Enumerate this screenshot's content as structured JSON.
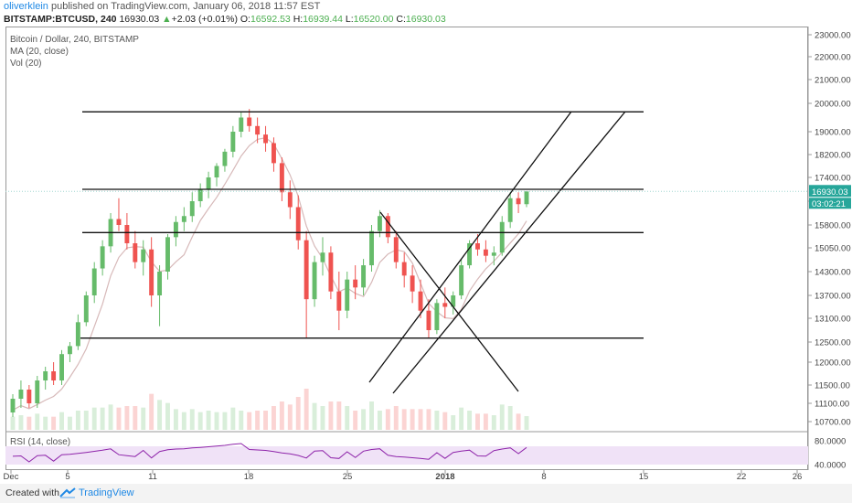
{
  "header": {
    "author": "oliverklein",
    "published_text": "published on TradingView.com, January 06, 2018 11:57 EST",
    "symbol": "BITSTAMP:BTCUSD",
    "interval": "240",
    "price": "16930.03",
    "change": "+2.03 (+0.01%)",
    "o_label": "O:",
    "o_value": "16592.53",
    "h_label": "H:",
    "h_value": "16939.44",
    "l_label": "L:",
    "l_value": "16520.00",
    "c_label": "C:",
    "c_value": "16930.03"
  },
  "legend": {
    "title": "Bitcoin / Dollar, 240, BITSTAMP",
    "ma": "MA (20, close)",
    "vol": "Vol (20)",
    "rsi": "RSI (14, close)"
  },
  "footer": {
    "created_with": "Created with",
    "brand": "TradingView"
  },
  "colors": {
    "up": "#66bb6a",
    "down": "#ef5350",
    "ma": "#d7b9b9",
    "rsi_line": "#8e24aa",
    "rsi_band": "#f0e2f7",
    "price_label": "#26a69a",
    "accent": "#1e88e5"
  },
  "chart_data": {
    "type": "candlestick",
    "title": "Bitcoin / Dollar, 240, BITSTAMP",
    "current_price_label": "16930.03",
    "countdown_label": "03:02:21",
    "y_ticks": [
      "23000.00",
      "22000.00",
      "21000.00",
      "20000.00",
      "19000.00",
      "18200.00",
      "17400.00",
      "16600.00",
      "15800.00",
      "15050.00",
      "14300.00",
      "13700.00",
      "13100.00",
      "12500.00",
      "12000.00",
      "11500.00",
      "11100.00",
      "10700.00"
    ],
    "rsi_ticks": [
      "80.0000",
      "40.0000"
    ],
    "x_ticks": [
      "Dec",
      "5",
      "11",
      "18",
      "25",
      "2018",
      "8",
      "15",
      "22",
      "26"
    ],
    "x_ticks_bold": [
      "2018"
    ],
    "ylim_approx": [
      10400,
      23400
    ],
    "ma_label": "MA (20, close)",
    "rsi_label": "RSI (14, close)",
    "horizontal_lines": [
      19700,
      17000,
      15550,
      12600
    ],
    "trend_lines": [
      {
        "from": [
          "Dec 29",
          11500
        ],
        "to": [
          "Jan 9",
          19700
        ]
      },
      {
        "from": [
          "Dec 30",
          11300
        ],
        "to": [
          "Jan 12",
          19700
        ]
      },
      {
        "from": [
          "Dec 27",
          16250
        ],
        "to": [
          "Jan 6",
          11400
        ]
      }
    ],
    "candles_approx": [
      [
        10900,
        11300,
        10800,
        11200
      ],
      [
        11200,
        11600,
        11000,
        11400
      ],
      [
        11400,
        11500,
        11000,
        11100
      ],
      [
        11100,
        11700,
        11000,
        11600
      ],
      [
        11600,
        11900,
        11400,
        11800
      ],
      [
        11800,
        12000,
        11500,
        11600
      ],
      [
        11600,
        12300,
        11500,
        12200
      ],
      [
        12200,
        12500,
        12000,
        12400
      ],
      [
        12400,
        13200,
        12300,
        13000
      ],
      [
        13000,
        13800,
        12900,
        13700
      ],
      [
        13700,
        14600,
        13500,
        14400
      ],
      [
        14400,
        15300,
        14200,
        15100
      ],
      [
        15100,
        16200,
        14900,
        16000
      ],
      [
        16000,
        16700,
        15600,
        15800
      ],
      [
        15800,
        16200,
        15000,
        15200
      ],
      [
        15200,
        15600,
        14400,
        14600
      ],
      [
        14600,
        15300,
        14200,
        15000
      ],
      [
        15000,
        15400,
        13400,
        13700
      ],
      [
        13700,
        14500,
        12900,
        14300
      ],
      [
        14300,
        15500,
        14100,
        15400
      ],
      [
        15400,
        16100,
        15100,
        15900
      ],
      [
        15900,
        16400,
        15600,
        16100
      ],
      [
        16100,
        16900,
        15900,
        16600
      ],
      [
        16600,
        17200,
        16400,
        17000
      ],
      [
        17000,
        17600,
        16700,
        17400
      ],
      [
        17400,
        17900,
        17100,
        17800
      ],
      [
        17800,
        18400,
        17600,
        18300
      ],
      [
        18300,
        19200,
        18100,
        19000
      ],
      [
        19000,
        19700,
        18800,
        19500
      ],
      [
        19500,
        19800,
        19000,
        19200
      ],
      [
        19200,
        19500,
        18600,
        18900
      ],
      [
        18900,
        19200,
        18300,
        18600
      ],
      [
        18600,
        18800,
        17600,
        17900
      ],
      [
        17900,
        18100,
        16600,
        16900
      ],
      [
        16900,
        17300,
        16000,
        16400
      ],
      [
        16400,
        16800,
        15000,
        15300
      ],
      [
        15300,
        15600,
        12600,
        13600
      ],
      [
        13600,
        14800,
        13400,
        14600
      ],
      [
        14600,
        15400,
        14200,
        14900
      ],
      [
        14900,
        15100,
        13600,
        13800
      ],
      [
        13800,
        14300,
        12800,
        13300
      ],
      [
        13300,
        14300,
        13100,
        14100
      ],
      [
        14100,
        14500,
        13600,
        13900
      ],
      [
        13900,
        14700,
        13700,
        14500
      ],
      [
        14500,
        15800,
        14300,
        15600
      ],
      [
        15600,
        16300,
        15400,
        16100
      ],
      [
        16100,
        16200,
        15200,
        15400
      ],
      [
        15400,
        15600,
        14400,
        14600
      ],
      [
        14600,
        14900,
        13900,
        14200
      ],
      [
        14200,
        14500,
        13500,
        13800
      ],
      [
        13800,
        14100,
        13100,
        13300
      ],
      [
        13300,
        13600,
        12600,
        12800
      ],
      [
        12800,
        13600,
        12700,
        13500
      ],
      [
        13500,
        13900,
        13100,
        13400
      ],
      [
        13400,
        13800,
        13200,
        13700
      ],
      [
        13700,
        14700,
        13600,
        14500
      ],
      [
        14500,
        15300,
        14400,
        15200
      ],
      [
        15200,
        15500,
        14800,
        15000
      ],
      [
        15000,
        15300,
        14600,
        14800
      ],
      [
        14800,
        15100,
        14500,
        14900
      ],
      [
        14900,
        16100,
        14800,
        15900
      ],
      [
        15900,
        16900,
        15700,
        16700
      ],
      [
        16700,
        16900,
        16200,
        16500
      ],
      [
        16500,
        16940,
        16400,
        16930
      ]
    ]
  }
}
